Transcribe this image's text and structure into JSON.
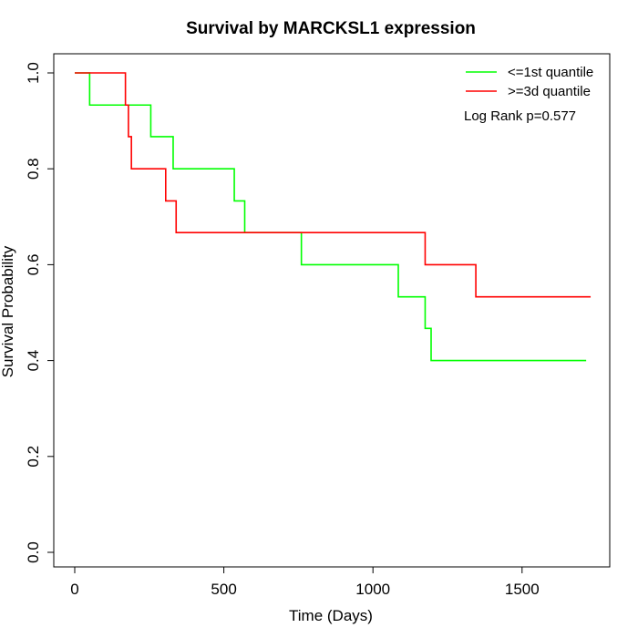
{
  "chart_data": {
    "type": "line",
    "subtype": "kaplan-meier-step",
    "title": "Survival by MARCKSL1 expression",
    "xlabel": "Time (Days)",
    "ylabel": "Survival Probability",
    "xlim": [
      0,
      1800
    ],
    "ylim": [
      0,
      1.0
    ],
    "x_ticks": [
      0,
      500,
      1000,
      1500
    ],
    "y_ticks": [
      0.0,
      0.2,
      0.4,
      0.6,
      0.8,
      1.0
    ],
    "x_tick_labels": [
      "0",
      "500",
      "1000",
      "1500"
    ],
    "y_tick_labels": [
      "0.0",
      "0.2",
      "0.4",
      "0.6",
      "0.8",
      "1.0"
    ],
    "grid": false,
    "legend_position": "top-right",
    "annotation": "Log Rank p=0.577",
    "series": [
      {
        "name": "<=1st quantile",
        "color": "#00ff00",
        "steps": [
          [
            0,
            1.0
          ],
          [
            50,
            0.933
          ],
          [
            255,
            0.867
          ],
          [
            330,
            0.8
          ],
          [
            535,
            0.733
          ],
          [
            570,
            0.667
          ],
          [
            760,
            0.6
          ],
          [
            1085,
            0.533
          ],
          [
            1175,
            0.467
          ],
          [
            1195,
            0.4
          ],
          [
            1715,
            0.4
          ]
        ]
      },
      {
        "name": ">=3d quantile",
        "color": "#ff0000",
        "steps": [
          [
            0,
            1.0
          ],
          [
            170,
            0.933
          ],
          [
            180,
            0.867
          ],
          [
            190,
            0.8
          ],
          [
            305,
            0.733
          ],
          [
            340,
            0.667
          ],
          [
            1175,
            0.6
          ],
          [
            1345,
            0.533
          ],
          [
            1730,
            0.533
          ]
        ]
      }
    ]
  }
}
